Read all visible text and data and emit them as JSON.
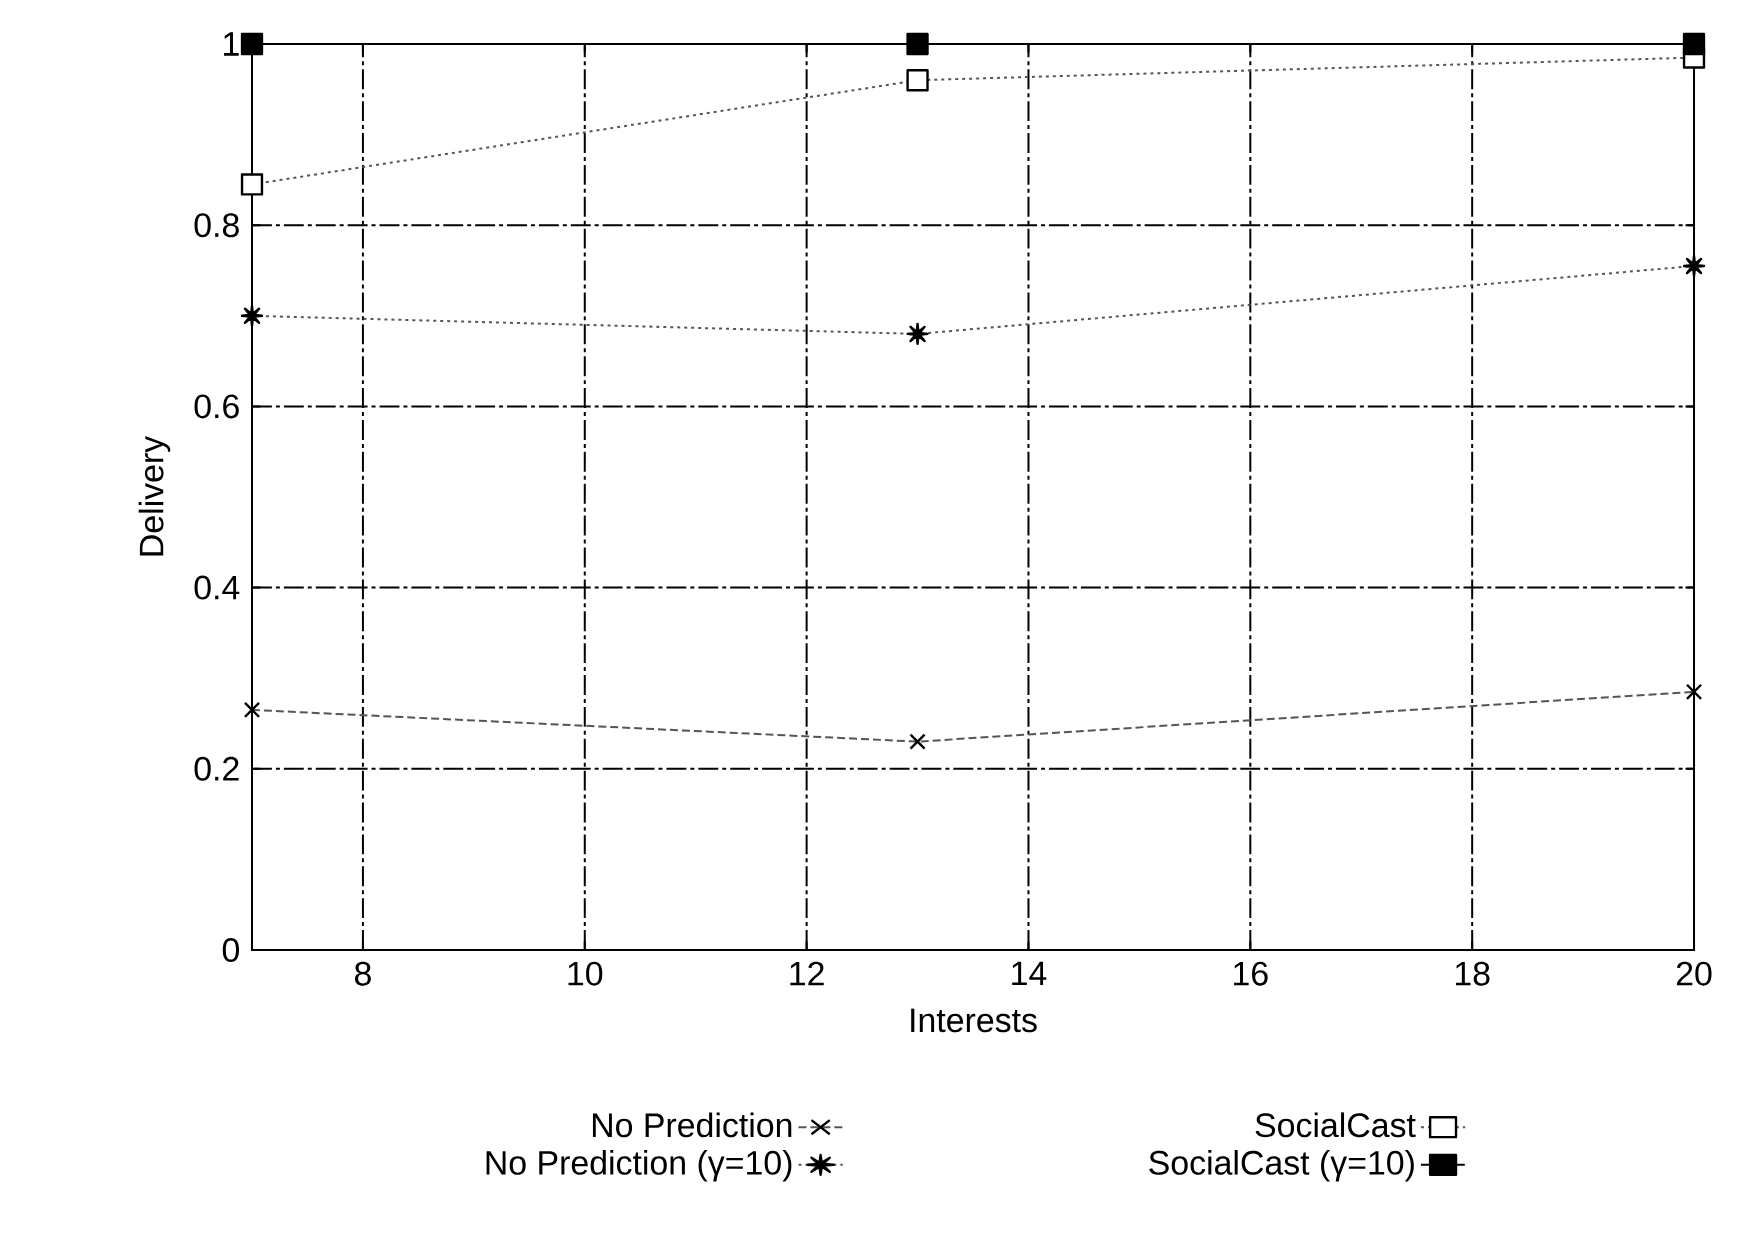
{
  "chart_data": {
    "type": "line",
    "xlabel": "Interests",
    "ylabel": "Delivery",
    "x": [
      7,
      13,
      20
    ],
    "series": [
      {
        "name": "No Prediction",
        "color": "#555555",
        "values": [
          0.265,
          0.23,
          0.285
        ],
        "marker": "cross",
        "line_style": "dashed"
      },
      {
        "name": "SocialCast",
        "color": "#555555",
        "values": [
          0.845,
          0.96,
          0.985
        ],
        "marker": "square",
        "line_style": "dotted"
      },
      {
        "name": "No Prediction (γ=10)",
        "color": "#555555",
        "values": [
          0.7,
          0.68,
          0.755
        ],
        "marker": "star",
        "line_style": "dotted"
      },
      {
        "name": "SocialCast (γ=10)",
        "color": "#000000",
        "values": [
          1,
          1,
          1
        ],
        "marker": "square",
        "line_style": "dashed"
      }
    ],
    "xlim": [
      7,
      20
    ],
    "xticks": [
      8,
      10,
      12,
      14,
      16,
      18,
      20
    ],
    "ylim": [
      0,
      1
    ],
    "yticks": [
      0,
      0.2,
      0.4,
      0.6,
      0.8,
      1
    ],
    "grid": true,
    "legend": "bottom"
  }
}
